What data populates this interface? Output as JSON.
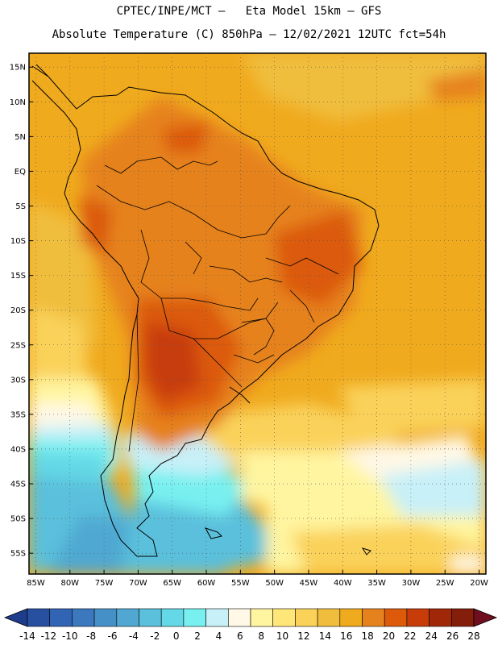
{
  "header": {
    "line1": "CPTEC/INPE/MCT –   Eta Model 15km – GFS",
    "line2": "Absolute Temperature (C) 850hPa – 12/02/2021 12UTC fct=54h"
  },
  "map": {
    "lat_labels": [
      "15N",
      "10N",
      "5N",
      "EQ",
      "5S",
      "10S",
      "15S",
      "20S",
      "25S",
      "30S",
      "35S",
      "40S",
      "45S",
      "50S",
      "55S"
    ],
    "lon_labels": [
      "85W",
      "80W",
      "75W",
      "70W",
      "65W",
      "60W",
      "55W",
      "50W",
      "45W",
      "40W",
      "35W",
      "30W",
      "25W",
      "20W"
    ],
    "lat_values": [
      15,
      10,
      5,
      0,
      -5,
      -10,
      -15,
      -20,
      -25,
      -30,
      -35,
      -40,
      -45,
      -50,
      -55
    ],
    "lon_values": [
      -85,
      -80,
      -75,
      -70,
      -65,
      -60,
      -55,
      -50,
      -45,
      -40,
      -35,
      -30,
      -25,
      -20
    ],
    "extent": {
      "lon": [
        -86,
        -19
      ],
      "lat": [
        -58,
        17
      ]
    },
    "gridlines": true
  },
  "colorbar": {
    "labels": [
      "-14",
      "-12",
      "-10",
      "-8",
      "-6",
      "-4",
      "-2",
      "0",
      "2",
      "4",
      "6",
      "8",
      "10",
      "12",
      "14",
      "16",
      "18",
      "20",
      "22",
      "24",
      "26",
      "28"
    ],
    "colors": [
      "#1e3c8c",
      "#2850a0",
      "#3264b4",
      "#3c78be",
      "#4690c8",
      "#50a8d2",
      "#5ac0dc",
      "#64d8e6",
      "#78f0f0",
      "#c8f0f8",
      "#fff8e6",
      "#fff5a0",
      "#ffe678",
      "#fad25a",
      "#f0be3c",
      "#f0aa1e",
      "#e6821e",
      "#dc5a0a",
      "#c83c0a",
      "#a02808",
      "#821e0a",
      "#6e0e1e"
    ]
  }
}
